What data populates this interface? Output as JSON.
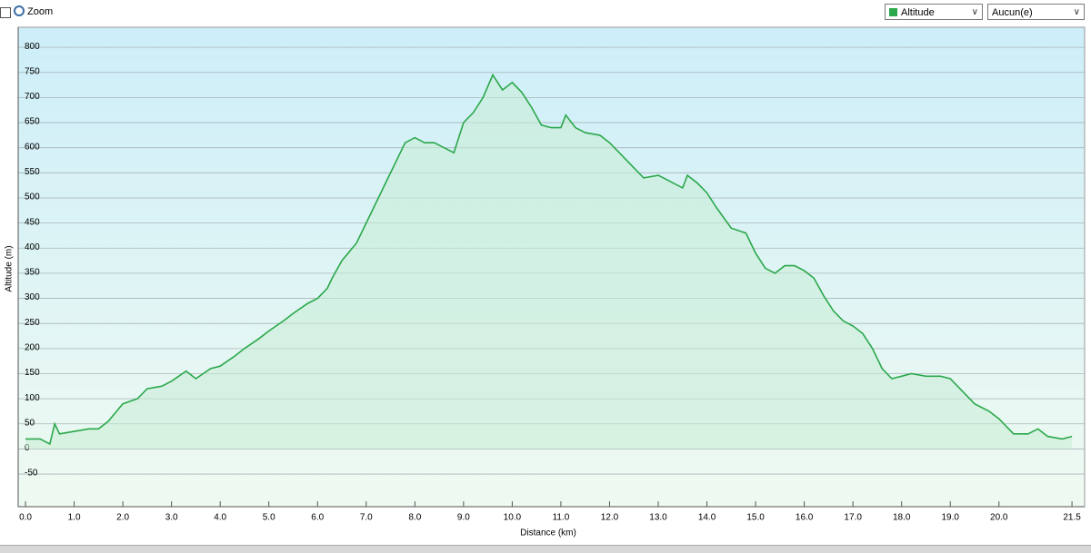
{
  "toolbar": {
    "zoom_label": "Zoom",
    "series_select": "Altitude",
    "compare_select": "Aucun(e)"
  },
  "chart_data": {
    "type": "line",
    "x_label": "Distance  (km)",
    "y_label": "Altitude (m)",
    "color": "#2aa84a",
    "fill": "#c8ecd6",
    "grid": true,
    "xlim": [
      -0.15,
      21.76
    ],
    "ylim": [
      -115,
      840
    ],
    "xticks": [
      {
        "value": 0,
        "label": "0.0"
      },
      {
        "value": 1,
        "label": "1.0"
      },
      {
        "value": 2,
        "label": "2.0"
      },
      {
        "value": 3,
        "label": "3.0"
      },
      {
        "value": 4,
        "label": "4.0"
      },
      {
        "value": 5,
        "label": "5.0"
      },
      {
        "value": 6,
        "label": "6.0"
      },
      {
        "value": 7,
        "label": "7.0"
      },
      {
        "value": 8,
        "label": "8.0"
      },
      {
        "value": 9,
        "label": "9.0"
      },
      {
        "value": 10,
        "label": "10.0"
      },
      {
        "value": 11,
        "label": "11.0"
      },
      {
        "value": 12,
        "label": "12.0"
      },
      {
        "value": 13,
        "label": "13.0"
      },
      {
        "value": 14,
        "label": "14.0"
      },
      {
        "value": 15,
        "label": "15.0"
      },
      {
        "value": 16,
        "label": "16.0"
      },
      {
        "value": 17,
        "label": "17.0"
      },
      {
        "value": 18,
        "label": "18.0"
      },
      {
        "value": 19,
        "label": "19.0"
      },
      {
        "value": 20,
        "label": "20.0"
      },
      {
        "value": 21.5,
        "label": "21.5"
      }
    ],
    "yticks": [
      -50,
      0,
      50,
      100,
      150,
      200,
      250,
      300,
      350,
      400,
      450,
      500,
      550,
      600,
      650,
      700,
      750,
      800
    ],
    "x": [
      0,
      0.3,
      0.5,
      0.6,
      0.7,
      1.0,
      1.3,
      1.5,
      1.7,
      2.0,
      2.3,
      2.5,
      2.8,
      3.0,
      3.3,
      3.5,
      3.8,
      4.0,
      4.3,
      4.5,
      4.8,
      5.0,
      5.3,
      5.5,
      5.8,
      6.0,
      6.2,
      6.3,
      6.5,
      6.8,
      7.0,
      7.2,
      7.4,
      7.6,
      7.8,
      8.0,
      8.2,
      8.4,
      8.6,
      8.8,
      9.0,
      9.2,
      9.4,
      9.6,
      9.8,
      10.0,
      10.2,
      10.4,
      10.6,
      10.8,
      11.0,
      11.1,
      11.3,
      11.5,
      11.8,
      12.0,
      12.2,
      12.5,
      12.7,
      13.0,
      13.2,
      13.5,
      13.6,
      13.8,
      14.0,
      14.2,
      14.5,
      14.8,
      15.0,
      15.2,
      15.4,
      15.6,
      15.8,
      16.0,
      16.2,
      16.4,
      16.6,
      16.8,
      17.0,
      17.2,
      17.4,
      17.6,
      17.8,
      18.0,
      18.2,
      18.5,
      18.8,
      19.0,
      19.2,
      19.5,
      19.8,
      20.0,
      20.3,
      20.6,
      20.8,
      21.0,
      21.3,
      21.5
    ],
    "values": [
      20,
      20,
      10,
      50,
      30,
      35,
      40,
      40,
      55,
      90,
      100,
      120,
      125,
      135,
      155,
      140,
      160,
      165,
      185,
      200,
      220,
      235,
      255,
      270,
      290,
      300,
      320,
      340,
      375,
      410,
      450,
      490,
      530,
      570,
      610,
      620,
      610,
      610,
      600,
      590,
      650,
      670,
      700,
      745,
      715,
      730,
      710,
      680,
      645,
      640,
      640,
      665,
      640,
      630,
      625,
      610,
      590,
      560,
      540,
      545,
      535,
      520,
      545,
      530,
      510,
      480,
      440,
      430,
      390,
      360,
      350,
      365,
      365,
      355,
      340,
      305,
      275,
      255,
      245,
      230,
      200,
      160,
      140,
      145,
      150,
      145,
      145,
      140,
      120,
      90,
      75,
      60,
      30,
      30,
      40,
      25,
      20,
      25
    ]
  }
}
